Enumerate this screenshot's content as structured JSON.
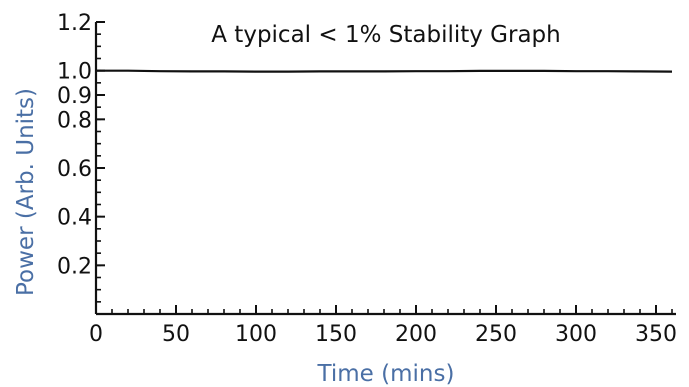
{
  "chart_data": {
    "type": "line",
    "title": "A typical < 1% Stability Graph",
    "xlabel": "Time (mins)",
    "ylabel": "Power (Arb. Units)",
    "xlim": [
      0,
      360
    ],
    "ylim": [
      0,
      1.2
    ],
    "x_ticks": [
      0,
      50,
      100,
      150,
      200,
      250,
      300,
      350
    ],
    "x_tick_labels": [
      "0",
      "50",
      "100",
      "150",
      "200",
      "250",
      "300",
      "350"
    ],
    "y_ticks": [
      0.2,
      0.4,
      0.6,
      0.8,
      0.9,
      1.0,
      1.2
    ],
    "y_tick_labels": [
      "0.2",
      "0.4",
      "0.6",
      "0.8",
      "0.9",
      "1.0",
      "1.2"
    ],
    "grid": false,
    "legend": "none",
    "axis_label_color": "#4a6fa5",
    "line_color": "#111111",
    "series": [
      {
        "x": [
          0,
          20,
          40,
          60,
          80,
          100,
          120,
          140,
          160,
          180,
          200,
          220,
          240,
          260,
          280,
          300,
          320,
          340,
          360
        ],
        "values": [
          1.0,
          1.0,
          0.998,
          0.997,
          0.997,
          0.996,
          0.996,
          0.997,
          0.997,
          0.997,
          0.998,
          0.998,
          0.999,
          0.999,
          0.999,
          0.998,
          0.998,
          0.997,
          0.996
        ]
      }
    ]
  }
}
